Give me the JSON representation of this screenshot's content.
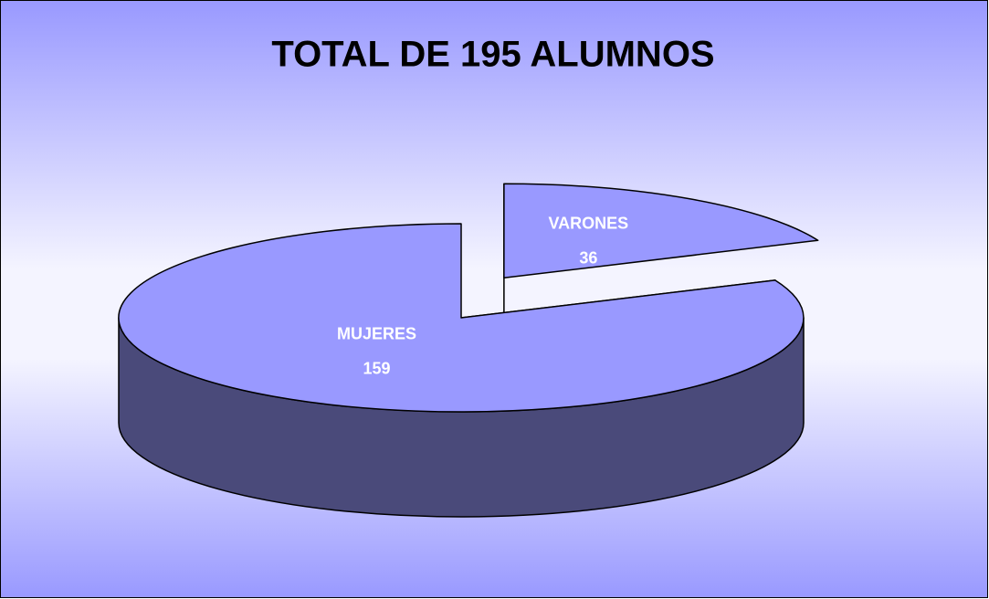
{
  "chart_data": {
    "type": "pie3d",
    "title": "TOTAL DE 195 ALUMNOS",
    "categories": [
      "MUJERES",
      "VARONES"
    ],
    "values": [
      159,
      36
    ],
    "colors": [
      "#9999ff",
      "#9999ff"
    ],
    "side_color": "#4a4a7a"
  }
}
